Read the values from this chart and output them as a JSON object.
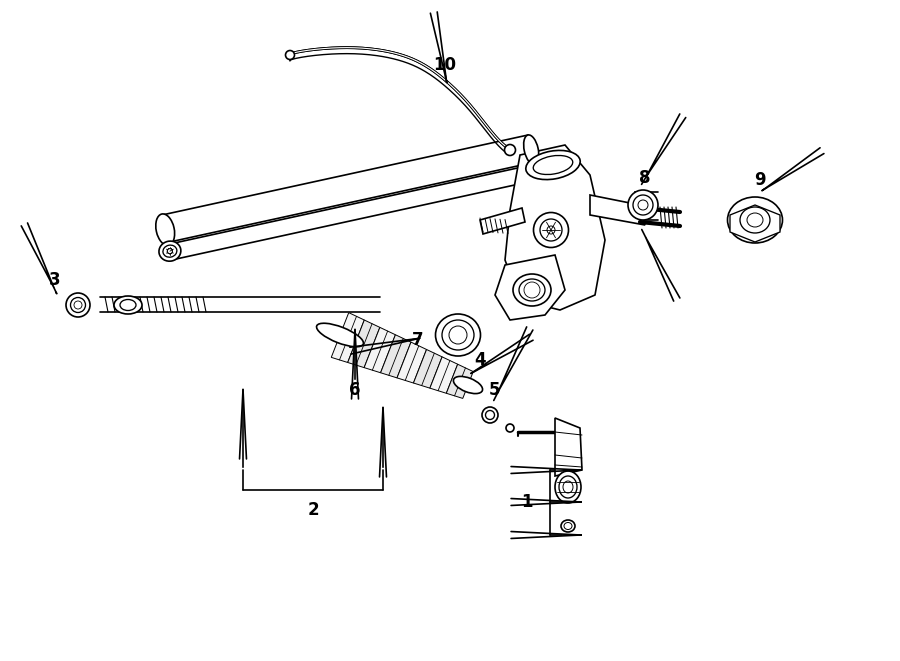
{
  "bg_color": "#ffffff",
  "line_color": "#000000",
  "figsize": [
    9.0,
    6.61
  ],
  "dpi": 100,
  "lw": 1.2,
  "label_fontsize": 12
}
